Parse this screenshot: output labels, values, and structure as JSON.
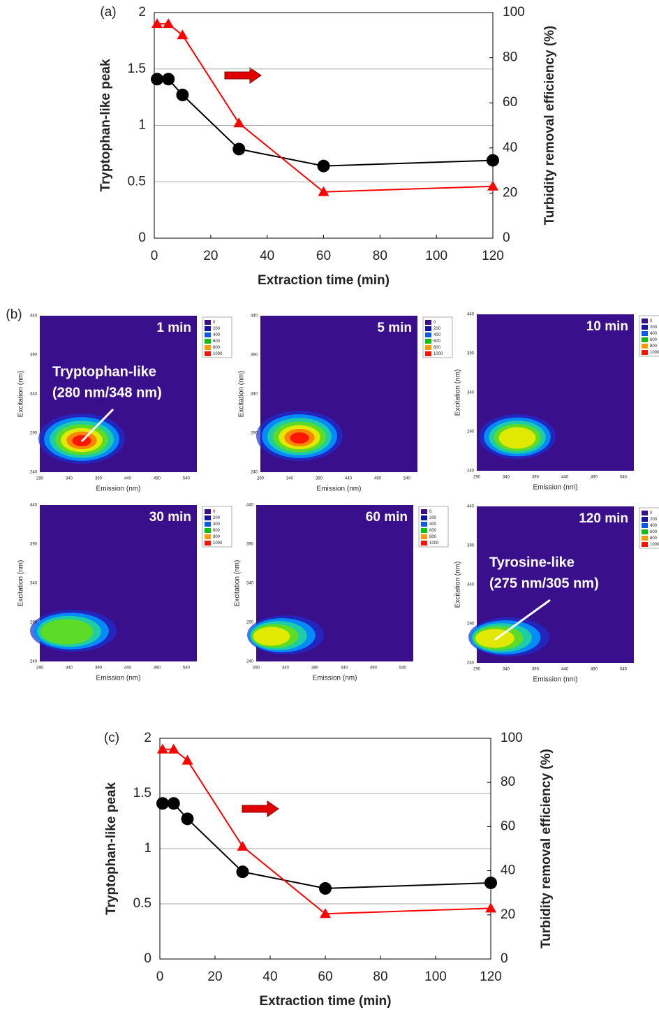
{
  "chart_data": [
    {
      "type": "line",
      "panel_label": "(a)",
      "xlabel": "Extraction time (min)",
      "ylabel": "Tryptophan-like peak",
      "y2label": "Turbidity removal efficiency (%)",
      "x": [
        1,
        5,
        10,
        30,
        60,
        120
      ],
      "series": [
        {
          "color": "#000000",
          "marker": "circle",
          "values": [
            1.41,
            1.41,
            1.27,
            0.79,
            0.64,
            0.69
          ]
        },
        {
          "color": "#ff0000",
          "marker": "triangle",
          "axis": "y2",
          "values": [
            95,
            95,
            90,
            51,
            20.5,
            23
          ]
        }
      ],
      "xlim": [
        0,
        120
      ],
      "xticks": [
        0,
        20,
        40,
        60,
        80,
        100,
        120
      ],
      "ylim": [
        0,
        2
      ],
      "yticks": [
        0,
        0.5,
        1,
        1.5,
        2
      ],
      "y2lim": [
        0,
        100
      ],
      "y2ticks": [
        0,
        20,
        40,
        60,
        80,
        100
      ],
      "grid": true
    },
    {
      "type": "line",
      "panel_label": "(c)",
      "xlabel": "Extraction time (min)",
      "ylabel": "Tryptophan-like peak",
      "y2label": "Turbidity removal efficiency (%)",
      "x": [
        1,
        5,
        10,
        30,
        60,
        120
      ],
      "series": [
        {
          "color": "#000000",
          "marker": "circle",
          "values": [
            1.41,
            1.41,
            1.27,
            0.79,
            0.64,
            0.69
          ]
        },
        {
          "color": "#ff0000",
          "marker": "triangle",
          "axis": "y2",
          "values": [
            95,
            95,
            90,
            51,
            20.5,
            23
          ]
        }
      ],
      "xlim": [
        0,
        120
      ],
      "xticks": [
        0,
        20,
        40,
        60,
        80,
        100,
        120
      ],
      "ylim": [
        0,
        2
      ],
      "yticks": [
        0,
        0.5,
        1,
        1.5,
        2
      ],
      "y2lim": [
        0,
        100
      ],
      "y2ticks": [
        0,
        20,
        40,
        60,
        80,
        100
      ],
      "grid": true
    }
  ],
  "eem": {
    "panel_label": "(b)",
    "xlabel": "Emission (nm)",
    "ylabel": "Excitation (nm)",
    "xlim": [
      290,
      558
    ],
    "xticks": [
      290,
      340,
      390,
      440,
      490,
      540
    ],
    "ylim": [
      240,
      440
    ],
    "yticks": [
      240,
      290,
      340,
      390,
      440
    ],
    "colorbar": {
      "ticks": [
        0,
        200,
        400,
        600,
        800,
        1000
      ],
      "colors": [
        "#3a0f8c",
        "#1414a8",
        "#0a5af0",
        "#10c010",
        "#ff9a00",
        "#ff1000"
      ]
    },
    "panels": [
      {
        "time": "1 min",
        "annotation": [
          "Tryptophan-like",
          "(280 nm/348 nm)"
        ]
      },
      {
        "time": "5 min"
      },
      {
        "time": "10 min"
      },
      {
        "time": "30 min"
      },
      {
        "time": "60 min"
      },
      {
        "time": "120 min",
        "annotation": [
          "Tyrosine-like",
          "(275 nm/305 nm)"
        ]
      }
    ]
  }
}
